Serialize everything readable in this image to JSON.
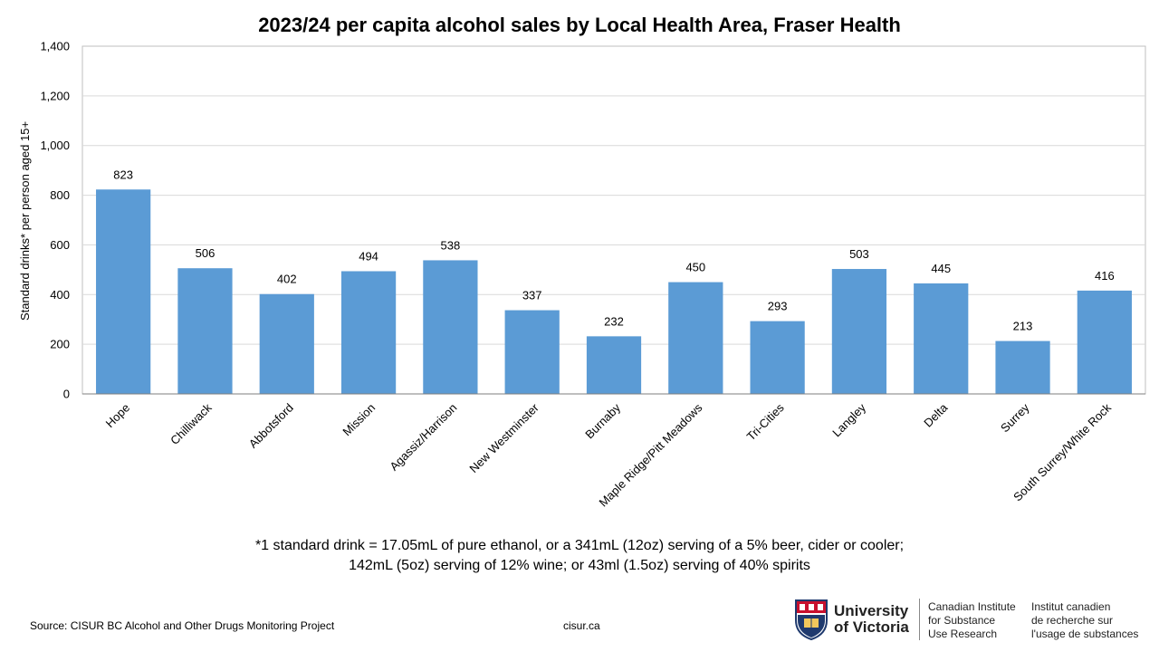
{
  "chart_data": {
    "type": "bar",
    "title": "2023/24 per capita alcohol sales by Local Health Area, Fraser Health",
    "ylabel": "Standard drinks* per person aged 15+",
    "xlabel": "",
    "ylim": [
      0,
      1400
    ],
    "yticks": [
      0,
      200,
      400,
      600,
      800,
      1000,
      1200,
      1400
    ],
    "ytick_labels": [
      "0",
      "200",
      "400",
      "600",
      "800",
      "1,000",
      "1,200",
      "1,400"
    ],
    "grid": true,
    "bar_color": "#5b9bd5",
    "categories": [
      "Hope",
      "Chilliwack",
      "Abbotsford",
      "Mission",
      "Agassiz/Harrison",
      "New Westminster",
      "Burnaby",
      "Maple Ridge/Pitt Meadows",
      "Tri-Cities",
      "Langley",
      "Delta",
      "Surrey",
      "South Surrey/White Rock"
    ],
    "values": [
      823,
      506,
      402,
      494,
      538,
      337,
      232,
      450,
      293,
      503,
      445,
      213,
      416
    ]
  },
  "footnote": {
    "line1": "*1 standard drink = 17.05mL of pure ethanol, or a 341mL (12oz) serving of a 5% beer, cider or cooler;",
    "line2": "142mL (5oz) serving of 12% wine; or 43ml (1.5oz) serving of 40% spirits"
  },
  "source": "Source: CISUR BC Alcohol and Other Drugs Monitoring Project",
  "website": "cisur.ca",
  "logo": {
    "university_line1": "University",
    "university_line2": "of Victoria",
    "en_line1": "Canadian Institute",
    "en_line2": "for Substance",
    "en_line3": "Use Research",
    "fr_line1": "Institut canadien",
    "fr_line2": "de recherche sur",
    "fr_line3": "l'usage de substances",
    "crest_icon": "uvic-crest-icon"
  }
}
